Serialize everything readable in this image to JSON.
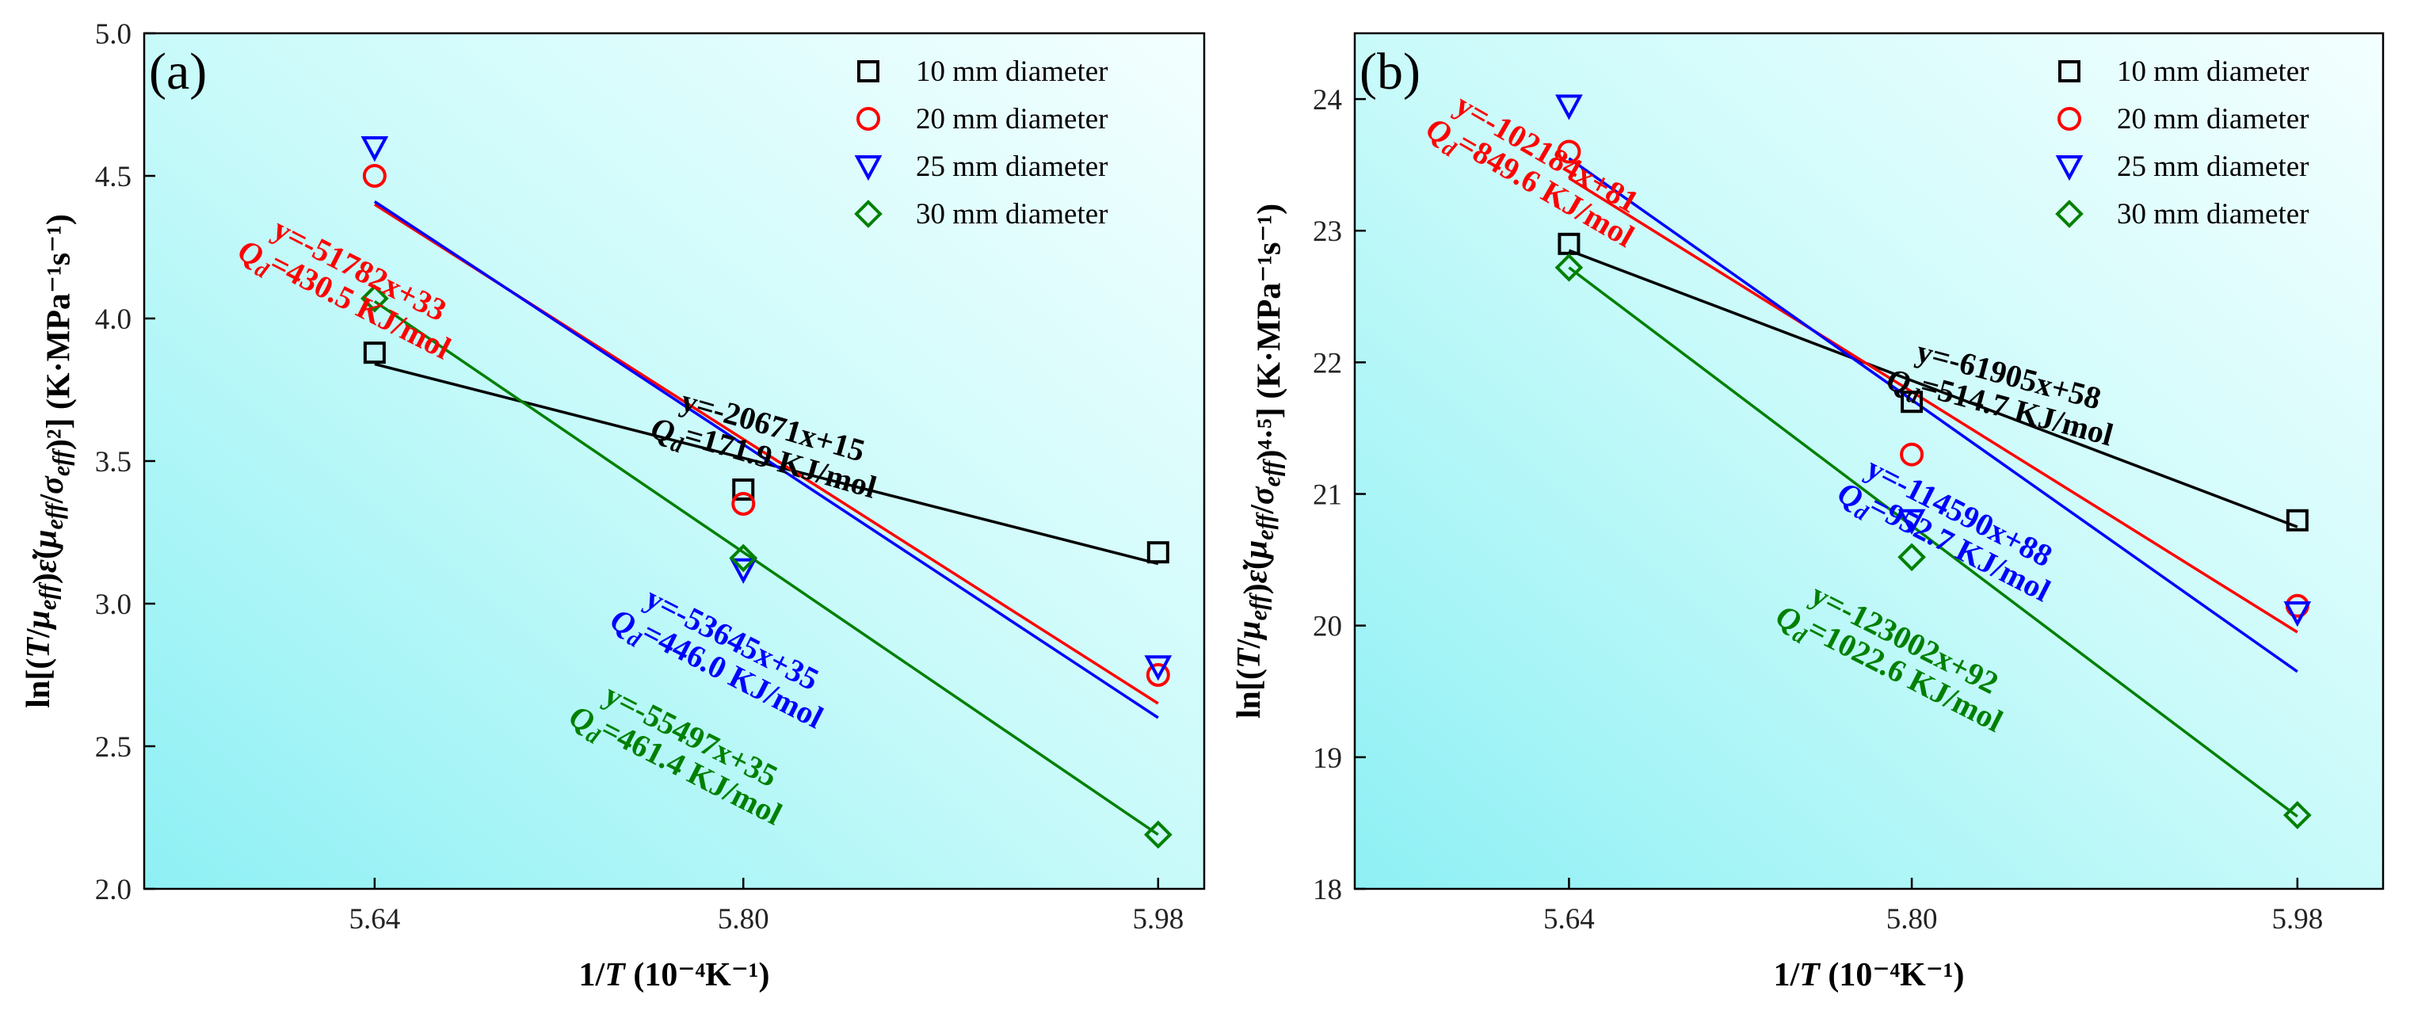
{
  "chart_data": [
    {
      "type": "scatter",
      "panel_label": "(a)",
      "xlabel": "1/T (10⁻⁴K⁻¹)",
      "ylabel": "ln[(T/μeff)ε̇(μeff/σeff)²] (K·MPa⁻¹s⁻¹)",
      "xlim": [
        5.54,
        6.0
      ],
      "ylim": [
        2.0,
        5.0
      ],
      "xticks": [
        "5.64",
        "5.80",
        "5.98"
      ],
      "yticks": [
        "2.0",
        "2.5",
        "3.0",
        "3.5",
        "4.0",
        "4.5",
        "5.0"
      ],
      "grid": false,
      "legend_position": "top-right",
      "x": [
        5.64,
        5.8,
        5.98
      ],
      "series": [
        {
          "name": "10 mm diameter",
          "marker": "square",
          "color": "#000000",
          "values": [
            3.88,
            3.4,
            3.18
          ],
          "fit_y": [
            3.84,
            3.14
          ]
        },
        {
          "name": "20 mm diameter",
          "marker": "circle",
          "color": "#ff0000",
          "values": [
            4.5,
            3.35,
            2.75
          ],
          "fit_y": [
            4.4,
            2.65
          ]
        },
        {
          "name": "25 mm diameter",
          "marker": "triangle-down",
          "color": "#0000ff",
          "values": [
            4.6,
            3.12,
            2.78
          ],
          "fit_y": [
            4.41,
            2.6
          ]
        },
        {
          "name": "30 mm diameter",
          "marker": "diamond",
          "color": "#008000",
          "values": [
            4.07,
            3.16,
            2.19
          ],
          "fit_y": [
            4.06,
            2.19
          ]
        }
      ],
      "annotations": [
        {
          "line1": "y=-51782x+33",
          "line2": "Qd=430.5 KJ/mol",
          "color": "#ff0000"
        },
        {
          "line1": "y=-20671x+15",
          "line2": "Qd=171.9 KJ/mol",
          "color": "#000000"
        },
        {
          "line1": "y=-53645x+35",
          "line2": "Qd=446.0 KJ/mol",
          "color": "#0000ff"
        },
        {
          "line1": "y=-55497x+35",
          "line2": "Qd=461.4 KJ/mol",
          "color": "#008000"
        }
      ]
    },
    {
      "type": "scatter",
      "panel_label": "(b)",
      "xlabel": "1/T (10⁻⁴K⁻¹)",
      "ylabel": "ln[(T/μeff)ε̇(μeff/σeff)⁴·⁵] (K·MPa⁻¹s⁻¹)",
      "xlim": [
        5.54,
        6.02
      ],
      "ylim": [
        18,
        24.5
      ],
      "xticks": [
        "5.64",
        "5.80",
        "5.98"
      ],
      "yticks": [
        "18",
        "19",
        "20",
        "21",
        "22",
        "23",
        "24"
      ],
      "grid": false,
      "legend_position": "top-right",
      "x": [
        5.64,
        5.8,
        5.98
      ],
      "series": [
        {
          "name": "10 mm diameter",
          "marker": "square",
          "color": "#000000",
          "values": [
            22.9,
            21.7,
            20.8
          ],
          "fit_y": [
            22.85,
            20.75
          ]
        },
        {
          "name": "20 mm diameter",
          "marker": "circle",
          "color": "#ff0000",
          "values": [
            23.6,
            21.3,
            20.15
          ],
          "fit_y": [
            23.4,
            19.95
          ]
        },
        {
          "name": "25 mm diameter",
          "marker": "triangle-down",
          "color": "#0000ff",
          "values": [
            23.95,
            20.8,
            20.1
          ],
          "fit_y": [
            23.55,
            19.65
          ]
        },
        {
          "name": "30 mm diameter",
          "marker": "diamond",
          "color": "#008000",
          "values": [
            22.72,
            20.52,
            18.56
          ],
          "fit_y": [
            22.72,
            18.55
          ]
        }
      ],
      "annotations": [
        {
          "line1": "y=-102184x+81",
          "line2": "Qd=849.6 KJ/mol",
          "color": "#ff0000"
        },
        {
          "line1": "y=-61905x+58",
          "line2": "Qd=514.7 KJ/mol",
          "color": "#000000"
        },
        {
          "line1": "y=-114590x+88",
          "line2": "Qd=952.7 KJ/mol",
          "color": "#0000ff"
        },
        {
          "line1": "y=-123002x+92",
          "line2": "Qd=1022.6 KJ/mol",
          "color": "#008000"
        }
      ]
    }
  ]
}
